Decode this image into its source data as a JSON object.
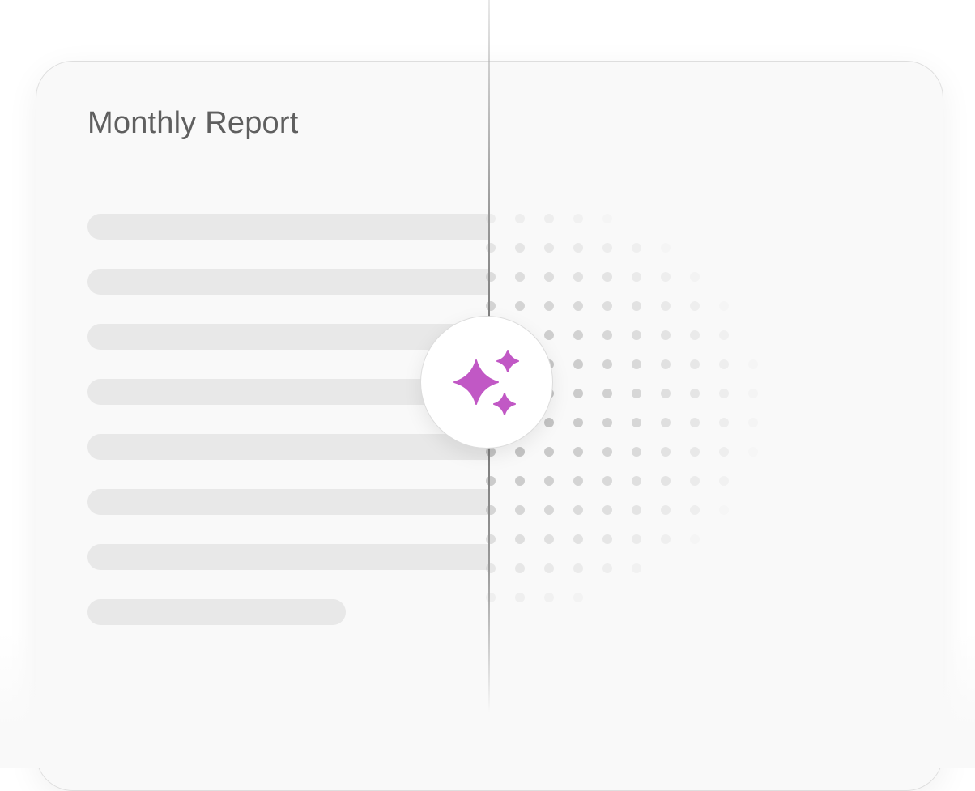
{
  "card": {
    "title": "Monthly Report"
  },
  "placeholder_lines": 8,
  "badge": {
    "icon": "sparkles-icon",
    "color": "#c158c5"
  },
  "colors": {
    "line": "#e8e8e8",
    "dot": "#a8a8a8",
    "divider": "#6e6e6e"
  }
}
